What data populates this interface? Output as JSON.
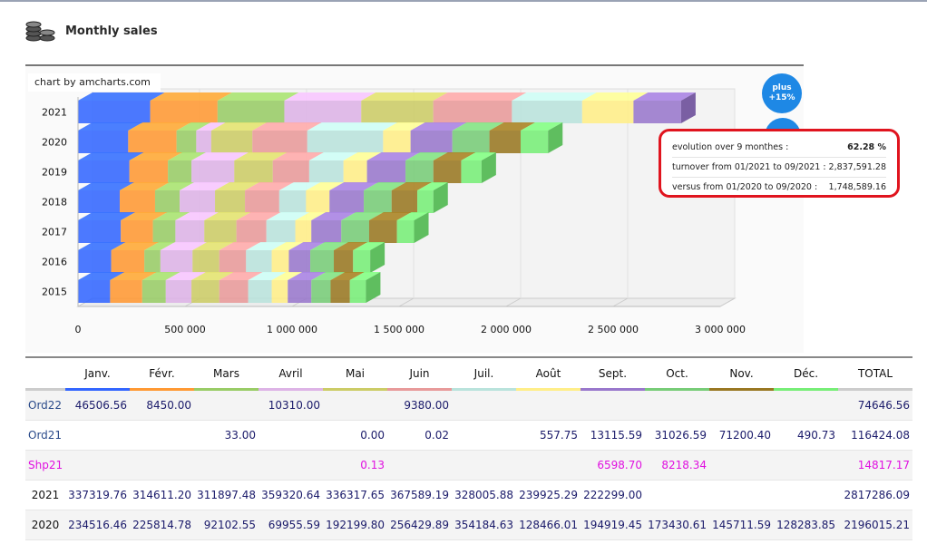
{
  "header": {
    "title": "Monthly sales",
    "icon": "coins-icon"
  },
  "credit": "chart by amcharts.com",
  "badge": {
    "line1": "plus",
    "line2": "+15%"
  },
  "stats": {
    "evolution_label": "evolution over 9 monthes :",
    "evolution_value": "62.28 %",
    "turnover_label": "turnover from 01/2021 to 09/2021 :",
    "turnover_value": "2,837,591.28",
    "versus_label": "versus from 01/2020 to 09/2020 :",
    "versus_value": "1,748,589.16"
  },
  "colors": {
    "months": [
      "#3366ff",
      "#ff9933",
      "#99cc66",
      "#ddb3e6",
      "#cccc66",
      "#e89a9a",
      "#b9e3dc",
      "#ffee88",
      "#9977cc",
      "#77cc77",
      "#997722",
      "#77ee77"
    ]
  },
  "chart_data": {
    "type": "bar",
    "orientation": "horizontal-stacked",
    "categories": [
      "2021",
      "2020",
      "2019",
      "2018",
      "2017",
      "2016",
      "2015"
    ],
    "series": [
      {
        "name": "Janv.",
        "values": [
          337319.76,
          234516.46,
          240000,
          195000,
          200000,
          155000,
          150000
        ]
      },
      {
        "name": "Févr.",
        "values": [
          314611.2,
          225814.78,
          180000,
          165000,
          150000,
          155000,
          150000
        ]
      },
      {
        "name": "Mars",
        "values": [
          311897.48,
          92102.55,
          110000,
          115000,
          105000,
          75000,
          110000
        ]
      },
      {
        "name": "Avril",
        "values": [
          359320.64,
          69955.59,
          200000,
          165000,
          135000,
          150000,
          120000
        ]
      },
      {
        "name": "Mai",
        "values": [
          336317.65,
          192199.8,
          180000,
          140000,
          150000,
          125000,
          130000
        ]
      },
      {
        "name": "Juin",
        "values": [
          367589.19,
          256429.89,
          170000,
          160000,
          140000,
          125000,
          135000
        ]
      },
      {
        "name": "Juil.",
        "values": [
          328005.88,
          354184.63,
          160000,
          125000,
          135000,
          120000,
          110000
        ]
      },
      {
        "name": "Août",
        "values": [
          239925.29,
          128466.01,
          110000,
          110000,
          75000,
          80000,
          75000
        ]
      },
      {
        "name": "Sept.",
        "values": [
          222299.0,
          194919.45,
          180000,
          160000,
          140000,
          100000,
          110000
        ]
      },
      {
        "name": "Oct.",
        "values": [
          0,
          173430.61,
          130000,
          130000,
          130000,
          110000,
          90000
        ]
      },
      {
        "name": "Nov.",
        "values": [
          0,
          145711.59,
          130000,
          120000,
          130000,
          90000,
          90000
        ]
      },
      {
        "name": "Déc.",
        "values": [
          0,
          128283.85,
          95000,
          75000,
          80000,
          80000,
          75000
        ]
      }
    ],
    "xticks": [
      "0",
      "500 000",
      "1 000 000",
      "1 500 000",
      "2 000 000",
      "2 500 000",
      "3 000 000"
    ],
    "xlim": [
      0,
      3000000
    ],
    "grid": true
  },
  "table": {
    "headers": [
      "",
      "Janv.",
      "Févr.",
      "Mars",
      "Avril",
      "Mai",
      "Juin",
      "Juil.",
      "Août",
      "Sept.",
      "Oct.",
      "Nov.",
      "Déc.",
      "TOTAL"
    ],
    "rows": [
      [
        "Ord22",
        "46506.56",
        "8450.00",
        "",
        "10310.00",
        "",
        "9380.00",
        "",
        "",
        "",
        "",
        "",
        "",
        "74646.56"
      ],
      [
        "Ord21",
        "",
        "",
        "33.00",
        "",
        "0.00",
        "0.02",
        "",
        "557.75",
        "13115.59",
        "31026.59",
        "71200.40",
        "490.73",
        "116424.08"
      ],
      [
        "Shp21",
        "",
        "",
        "",
        "",
        "0.13",
        "",
        "",
        "",
        "6598.70",
        "8218.34",
        "",
        "",
        "14817.17"
      ],
      [
        "2021",
        "337319.76",
        "314611.20",
        "311897.48",
        "359320.64",
        "336317.65",
        "367589.19",
        "328005.88",
        "239925.29",
        "222299.00",
        "",
        "",
        "",
        "2817286.09"
      ],
      [
        "2020",
        "234516.46",
        "225814.78",
        "92102.55",
        "69955.59",
        "192199.80",
        "256429.89",
        "354184.63",
        "128466.01",
        "194919.45",
        "173430.61",
        "145711.59",
        "128283.85",
        "2196015.21"
      ]
    ]
  }
}
